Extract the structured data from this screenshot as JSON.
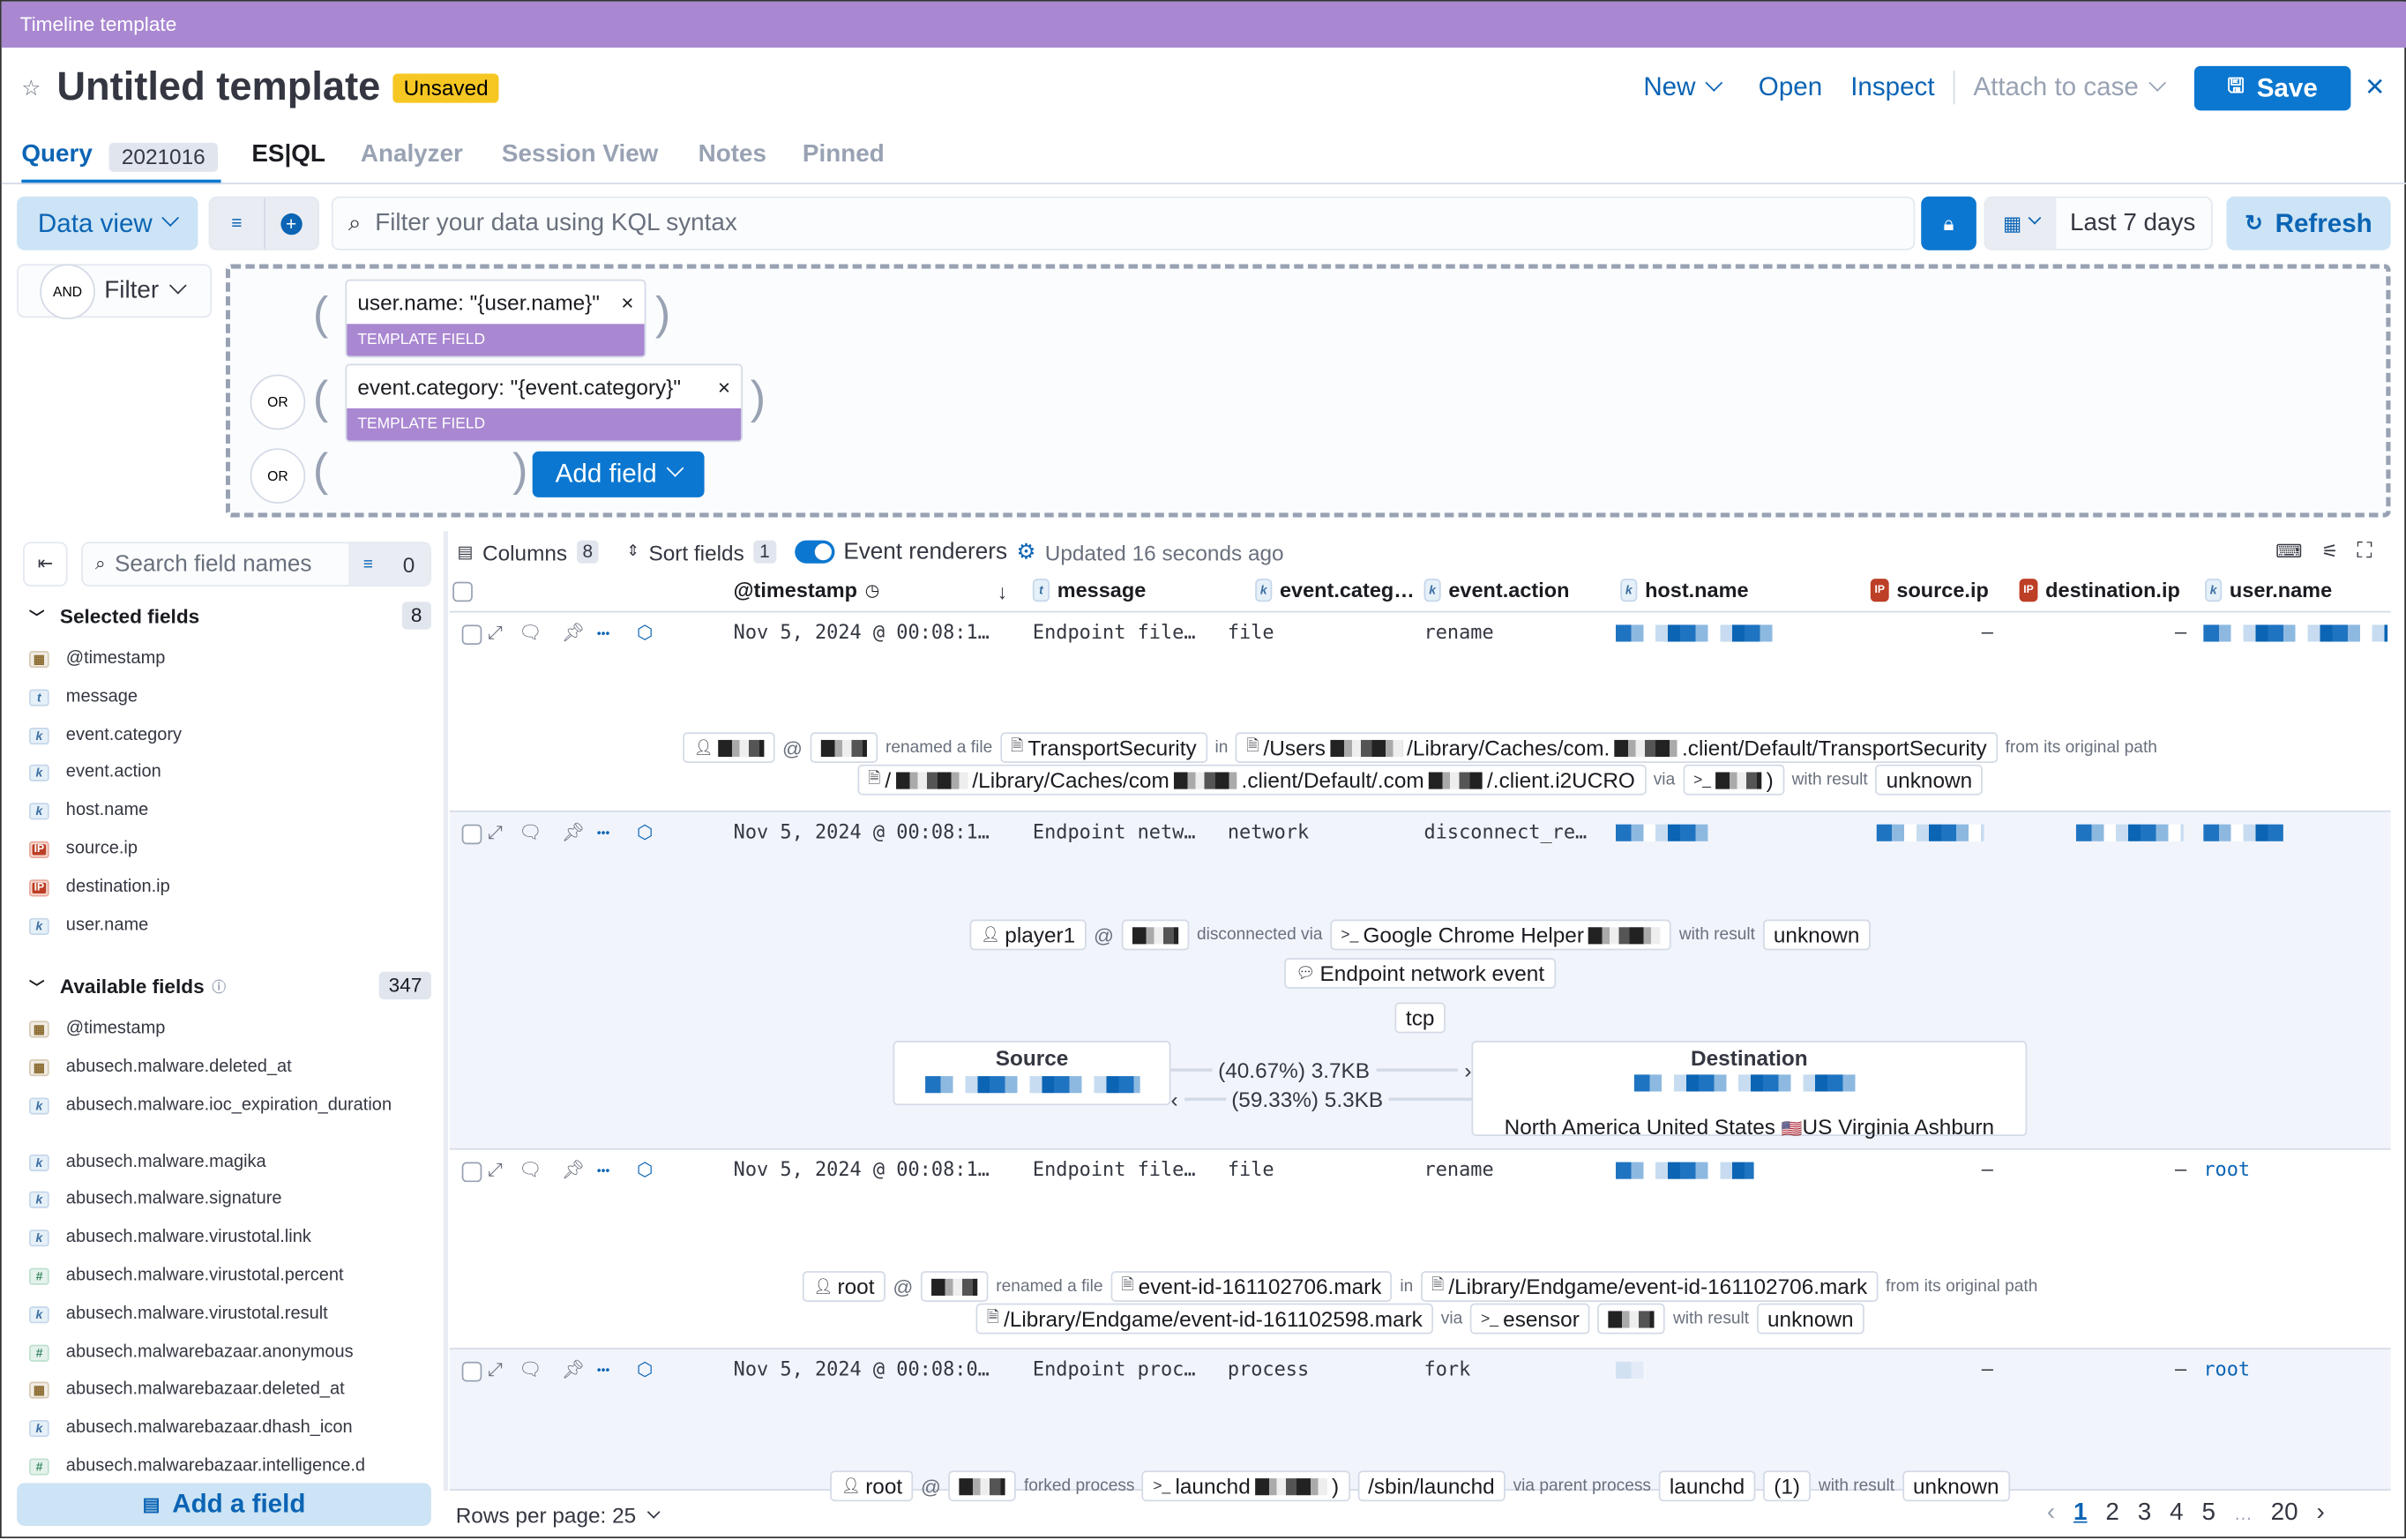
{
  "window": {
    "title": "Timeline template"
  },
  "header": {
    "title": "Untitled template",
    "status_badge": "Unsaved",
    "new_label": "New",
    "open_label": "Open",
    "inspect_label": "Inspect",
    "attach_label": "Attach to case",
    "save_label": "Save"
  },
  "tabs": [
    {
      "label": "Query",
      "badge": "2021016",
      "active": true
    },
    {
      "label": "ES|QL"
    },
    {
      "label": "Analyzer"
    },
    {
      "label": "Session View"
    },
    {
      "label": "Notes"
    },
    {
      "label": "Pinned"
    }
  ],
  "querybar": {
    "data_view_label": "Data view",
    "search_placeholder": "Filter your data using KQL syntax",
    "date_range": "Last 7 days",
    "refresh_label": "Refresh"
  },
  "filters": {
    "and_label": "AND",
    "filter_label": "Filter",
    "or_label": "OR",
    "template_field_label": "TEMPLATE FIELD",
    "items": [
      "user.name: \"{user.name}\"",
      "event.category: \"{event.category}\""
    ],
    "add_field_label": "Add field"
  },
  "sidebar": {
    "search_placeholder": "Search field names",
    "filter_count": "0",
    "selected_title": "Selected fields",
    "selected_count": "8",
    "selected": [
      {
        "name": "@timestamp",
        "type": "date"
      },
      {
        "name": "message",
        "type": "t"
      },
      {
        "name": "event.category",
        "type": "k"
      },
      {
        "name": "event.action",
        "type": "k"
      },
      {
        "name": "host.name",
        "type": "k"
      },
      {
        "name": "source.ip",
        "type": "ip"
      },
      {
        "name": "destination.ip",
        "type": "ip"
      },
      {
        "name": "user.name",
        "type": "k"
      }
    ],
    "available_title": "Available fields",
    "available_count": "347",
    "available": [
      {
        "name": "@timestamp",
        "type": "date"
      },
      {
        "name": "abusech.malware.deleted_at",
        "type": "date"
      },
      {
        "name": "abusech.malware.ioc_expiration_duration",
        "type": "k"
      },
      {
        "name": "abusech.malware.magika",
        "type": "k"
      },
      {
        "name": "abusech.malware.signature",
        "type": "k"
      },
      {
        "name": "abusech.malware.virustotal.link",
        "type": "k"
      },
      {
        "name": "abusech.malware.virustotal.percent",
        "type": "num"
      },
      {
        "name": "abusech.malware.virustotal.result",
        "type": "k"
      },
      {
        "name": "abusech.malwarebazaar.anonymous",
        "type": "num"
      },
      {
        "name": "abusech.malwarebazaar.deleted_at",
        "type": "date"
      },
      {
        "name": "abusech.malwarebazaar.dhash_icon",
        "type": "k"
      },
      {
        "name": "abusech.malwarebazaar.intelligence.d",
        "type": "num"
      }
    ],
    "add_field_label": "Add a field"
  },
  "toolbar": {
    "columns_label": "Columns",
    "columns_count": "8",
    "sort_label": "Sort fields",
    "sort_count": "1",
    "renderers_label": "Event renderers",
    "renderers_on": true,
    "updated": "Updated 16 seconds ago"
  },
  "columns": [
    {
      "label": "@timestamp",
      "type": ""
    },
    {
      "label": "message",
      "type": "t"
    },
    {
      "label": "event.categ…",
      "type": "k"
    },
    {
      "label": "event.action",
      "type": "k"
    },
    {
      "label": "host.name",
      "type": "k"
    },
    {
      "label": "source.ip",
      "type": "ip"
    },
    {
      "label": "destination.ip",
      "type": "ip"
    },
    {
      "label": "user.name",
      "type": "k"
    }
  ],
  "rows": [
    {
      "timestamp": "Nov 5, 2024 @ 00:08:1…",
      "message": "Endpoint file…",
      "category": "file",
      "action": "rename",
      "source_ip": "–",
      "destination_ip": "–",
      "user_name": "",
      "renderer": [
        [
          {
            "t": "pill",
            "icon": "user",
            "parts": [
              null
            ]
          },
          {
            "t": "text",
            "v": "@"
          },
          {
            "t": "pill",
            "parts": [
              null
            ]
          },
          {
            "t": "text",
            "v": "renamed a file"
          },
          {
            "t": "pill",
            "icon": "file",
            "parts": [
              "TransportSecurity"
            ]
          },
          {
            "t": "text",
            "v": "in"
          },
          {
            "t": "pill",
            "icon": "file",
            "parts": [
              "/Users",
              null,
              "/Library/Caches/com.",
              null,
              ".client/Default/TransportSecurity"
            ]
          },
          {
            "t": "text",
            "v": "from its original path"
          }
        ],
        [
          {
            "t": "pill",
            "icon": "file",
            "parts": [
              "/",
              null,
              "/Library/Caches/com",
              null,
              ".client/Default/.com",
              null,
              "/.client.i2UCRO"
            ]
          },
          {
            "t": "text",
            "v": "via"
          },
          {
            "t": "pill",
            "icon": "terminal",
            "parts": [
              null,
              ")"
            ]
          },
          {
            "t": "text",
            "v": "with result"
          },
          {
            "t": "pill",
            "parts": [
              "unknown"
            ]
          }
        ]
      ]
    },
    {
      "timestamp": "Nov 5, 2024 @ 00:08:1…",
      "message": "Endpoint netw…",
      "category": "network",
      "action": "disconnect_re…",
      "source_ip": "",
      "destination_ip": "",
      "user_name": "",
      "renderer": [
        [
          {
            "t": "pill",
            "icon": "user",
            "parts": [
              "player1"
            ]
          },
          {
            "t": "text",
            "v": "@"
          },
          {
            "t": "pill",
            "parts": [
              null
            ]
          },
          {
            "t": "text",
            "v": "disconnected via"
          },
          {
            "t": "pill",
            "icon": "terminal",
            "parts": [
              "Google Chrome Helper",
              null
            ]
          },
          {
            "t": "text",
            "v": "with result"
          },
          {
            "t": "pill",
            "parts": [
              "unknown"
            ]
          }
        ],
        [
          {
            "t": "pill",
            "icon": "comment",
            "parts": [
              "Endpoint network event"
            ]
          }
        ],
        [
          {
            "t": "pill",
            "parts": [
              "tcp"
            ]
          }
        ]
      ],
      "network": {
        "source_label": "Source",
        "destination_label": "Destination",
        "outbound": "(40.67%) 3.7KB",
        "inbound": "(59.33%) 5.3KB",
        "geo": "North America United States",
        "flag": "🇺🇸",
        "geo_region": "US Virginia Ashburn"
      }
    },
    {
      "timestamp": "Nov 5, 2024 @ 00:08:1…",
      "message": "Endpoint file…",
      "category": "file",
      "action": "rename",
      "source_ip": "–",
      "destination_ip": "–",
      "user_name": "root",
      "renderer": [
        [
          {
            "t": "pill",
            "icon": "user",
            "parts": [
              "root"
            ]
          },
          {
            "t": "text",
            "v": "@"
          },
          {
            "t": "pill",
            "parts": [
              null
            ]
          },
          {
            "t": "text",
            "v": "renamed a file"
          },
          {
            "t": "pill",
            "icon": "file",
            "parts": [
              "event-id-161102706.mark"
            ]
          },
          {
            "t": "text",
            "v": "in"
          },
          {
            "t": "pill",
            "icon": "file",
            "parts": [
              "/Library/Endgame/event-id-161102706.mark"
            ]
          },
          {
            "t": "text",
            "v": "from its original path"
          }
        ],
        [
          {
            "t": "pill",
            "icon": "file",
            "parts": [
              "/Library/Endgame/event-id-161102598.mark"
            ]
          },
          {
            "t": "text",
            "v": "via"
          },
          {
            "t": "pill",
            "icon": "terminal",
            "parts": [
              "esensor"
            ]
          },
          {
            "t": "pill",
            "parts": [
              null
            ]
          },
          {
            "t": "text",
            "v": "with result"
          },
          {
            "t": "pill",
            "parts": [
              "unknown"
            ]
          }
        ]
      ]
    },
    {
      "timestamp": "Nov 5, 2024 @ 00:08:0…",
      "message": "Endpoint proc…",
      "category": "process",
      "action": "fork",
      "source_ip": "–",
      "destination_ip": "–",
      "user_name": "root",
      "renderer": [
        [
          {
            "t": "pill",
            "icon": "user",
            "parts": [
              "root"
            ]
          },
          {
            "t": "text",
            "v": "@"
          },
          {
            "t": "pill",
            "parts": [
              null
            ]
          },
          {
            "t": "text",
            "v": "forked process"
          },
          {
            "t": "pill",
            "icon": "terminal",
            "parts": [
              "launchd",
              null,
              ")"
            ]
          },
          {
            "t": "pill",
            "parts": [
              "/sbin/launchd"
            ]
          },
          {
            "t": "text",
            "v": "via parent process"
          },
          {
            "t": "pill",
            "parts": [
              "launchd"
            ]
          },
          {
            "t": "pill",
            "parts": [
              "(1)"
            ]
          },
          {
            "t": "text",
            "v": "with result"
          },
          {
            "t": "pill",
            "parts": [
              "unknown"
            ]
          }
        ]
      ]
    }
  ],
  "footer": {
    "rows_per_page": "Rows per page: 25",
    "pages": [
      "1",
      "2",
      "3",
      "4",
      "5",
      "…",
      "20"
    ],
    "current_page": "1"
  },
  "colors": {
    "accent": "#0b77d0",
    "template_purple": "#a987d1",
    "unsaved_badge": "#f6c722",
    "row_highlight": "#f1f4fb"
  }
}
